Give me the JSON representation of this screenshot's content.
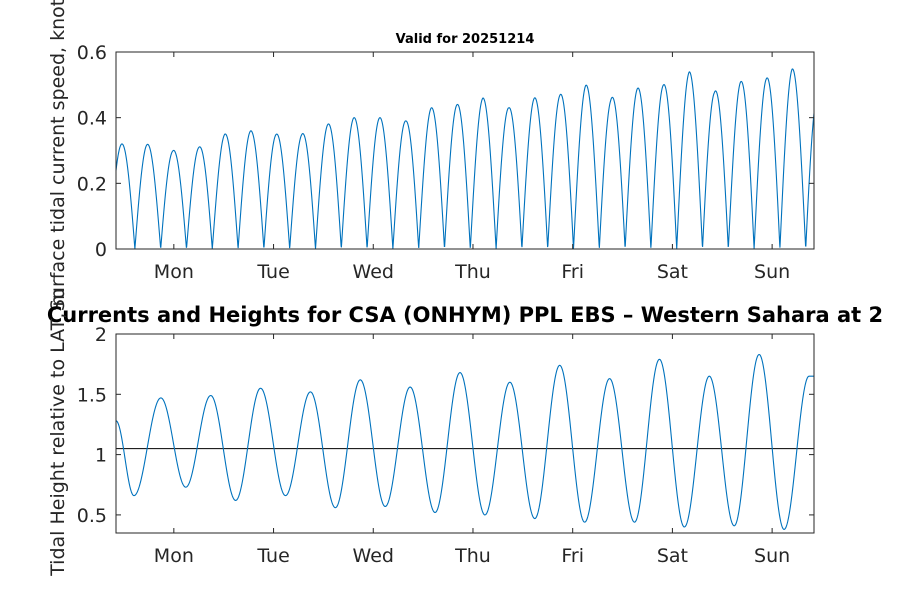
{
  "chart_data": [
    {
      "type": "line",
      "title": "Valid for 20251214",
      "xlabel": "",
      "ylabel": "Surface tidal current speed, knots",
      "x_tick_labels": [
        "Mon",
        "Tue",
        "Wed",
        "Thu",
        "Fri",
        "Sat",
        "Sun"
      ],
      "x_ticks_days": [
        1,
        2,
        3,
        4,
        5,
        6,
        7
      ],
      "xlim_days": [
        0.42,
        7.42
      ],
      "ylim": [
        0,
        0.6
      ],
      "y_ticks": [
        0,
        0.2,
        0.4,
        0.6
      ],
      "y_tick_labels": [
        "0",
        "0.2",
        "0.4",
        "0.6"
      ],
      "grid": false,
      "series": [
        {
          "name": "current speed",
          "color": "#0072BD",
          "semidiurnal_period_days": 0.5175,
          "peak_days": [
            0.48,
            0.72,
            0.99,
            1.25,
            1.51,
            1.77,
            2.03,
            2.28,
            2.54,
            2.8,
            3.07,
            3.33,
            3.58,
            3.84,
            4.1,
            4.36,
            4.61,
            4.87,
            5.13,
            5.38,
            5.65,
            5.91,
            6.17,
            6.42,
            6.68,
            6.94,
            7.2,
            7.45
          ],
          "peak_values": [
            0.32,
            0.32,
            0.3,
            0.31,
            0.35,
            0.36,
            0.35,
            0.35,
            0.38,
            0.4,
            0.4,
            0.39,
            0.43,
            0.44,
            0.46,
            0.43,
            0.46,
            0.47,
            0.5,
            0.46,
            0.49,
            0.5,
            0.54,
            0.48,
            0.51,
            0.52,
            0.55,
            0.48
          ]
        }
      ]
    },
    {
      "type": "line",
      "title": "Currents and Heights for CSA (ONHYM) PPL EBS  – Western Sahara at 2",
      "xlabel": "",
      "ylabel": "Tidal Height relative to LAT, m",
      "x_tick_labels": [
        "Mon",
        "Tue",
        "Wed",
        "Thu",
        "Fri",
        "Sat",
        "Sun"
      ],
      "x_ticks_days": [
        1,
        2,
        3,
        4,
        5,
        6,
        7
      ],
      "xlim_days": [
        0.42,
        7.42
      ],
      "ylim": [
        0.35,
        2.0
      ],
      "y_ticks": [
        0.5,
        1,
        1.5,
        2
      ],
      "y_tick_labels": [
        "0.5",
        "1",
        "1.5",
        "2"
      ],
      "grid": false,
      "reference_line": {
        "value": 1.05,
        "color": "#000000"
      },
      "series": [
        {
          "name": "tidal height",
          "color": "#0072BD",
          "high_water": {
            "days": [
              0.42,
              0.87,
              1.37,
              1.87,
              2.37,
              2.87,
              3.37,
              3.87,
              4.37,
              4.87,
              5.37,
              5.87,
              6.37,
              6.87,
              7.37
            ],
            "values": [
              1.28,
              1.47,
              1.49,
              1.55,
              1.52,
              1.62,
              1.56,
              1.68,
              1.6,
              1.74,
              1.63,
              1.79,
              1.65,
              1.83,
              1.65
            ]
          },
          "low_water": {
            "days": [
              0.6,
              1.12,
              1.62,
              2.12,
              2.62,
              3.12,
              3.62,
              4.12,
              4.62,
              5.12,
              5.62,
              6.12,
              6.62,
              7.12
            ],
            "values": [
              0.66,
              0.73,
              0.62,
              0.66,
              0.56,
              0.57,
              0.52,
              0.5,
              0.47,
              0.44,
              0.44,
              0.4,
              0.41,
              0.38
            ]
          }
        }
      ]
    }
  ]
}
